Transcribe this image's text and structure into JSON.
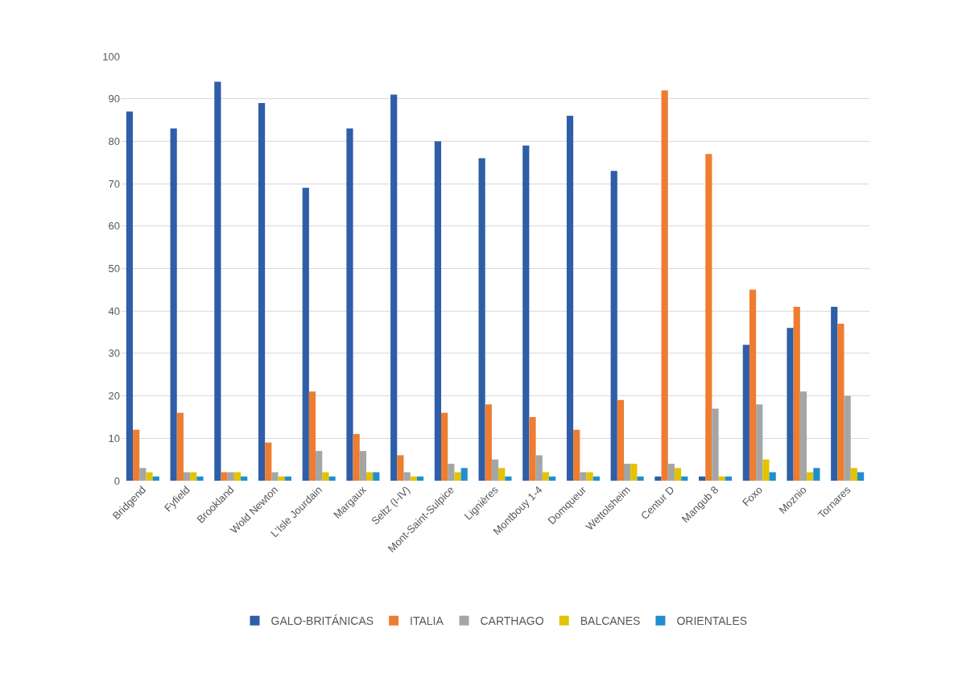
{
  "chart_data": {
    "type": "bar",
    "categories": [
      "Bridgend",
      "Fyfield",
      "Brookland",
      "Wold Newton",
      "L'Isle Jourdain",
      "Margaux",
      "Seltz (I-IV)",
      "Mont-Saint-Sulpice",
      "Lignières",
      "Montbouy 1-4",
      "Domqueur",
      "Wettolsheim",
      "Centur D",
      "Mangub 8",
      "Foxo",
      "Moznio",
      "Tornares"
    ],
    "series": [
      {
        "name": "GALO-BRITÁNICAS",
        "color": "#2e5ea8",
        "values": [
          87,
          83,
          94,
          89,
          69,
          83,
          91,
          80,
          76,
          79,
          86,
          73,
          1,
          1,
          32,
          36,
          41
        ]
      },
      {
        "name": "ITALIA",
        "color": "#ed7d31",
        "values": [
          12,
          16,
          2,
          9,
          21,
          11,
          6,
          16,
          18,
          15,
          12,
          19,
          92,
          77,
          45,
          41,
          37
        ]
      },
      {
        "name": "CARTHAGO",
        "color": "#a5a5a5",
        "values": [
          3,
          2,
          2,
          2,
          7,
          7,
          2,
          4,
          5,
          6,
          2,
          4,
          4,
          17,
          18,
          21,
          20
        ]
      },
      {
        "name": "BALCANES",
        "color": "#e3c300",
        "values": [
          2,
          2,
          2,
          1,
          2,
          2,
          1,
          2,
          3,
          2,
          2,
          4,
          3,
          1,
          5,
          2,
          3
        ]
      },
      {
        "name": "ORIENTALES",
        "color": "#1f8fd0",
        "values": [
          1,
          1,
          1,
          1,
          1,
          2,
          1,
          3,
          1,
          1,
          1,
          1,
          1,
          1,
          2,
          3,
          2
        ]
      }
    ],
    "ylim": [
      0,
      100
    ],
    "yticks": [
      0,
      10,
      20,
      30,
      40,
      50,
      60,
      70,
      80,
      90,
      100
    ],
    "grid": "y",
    "legend": "bottom"
  }
}
